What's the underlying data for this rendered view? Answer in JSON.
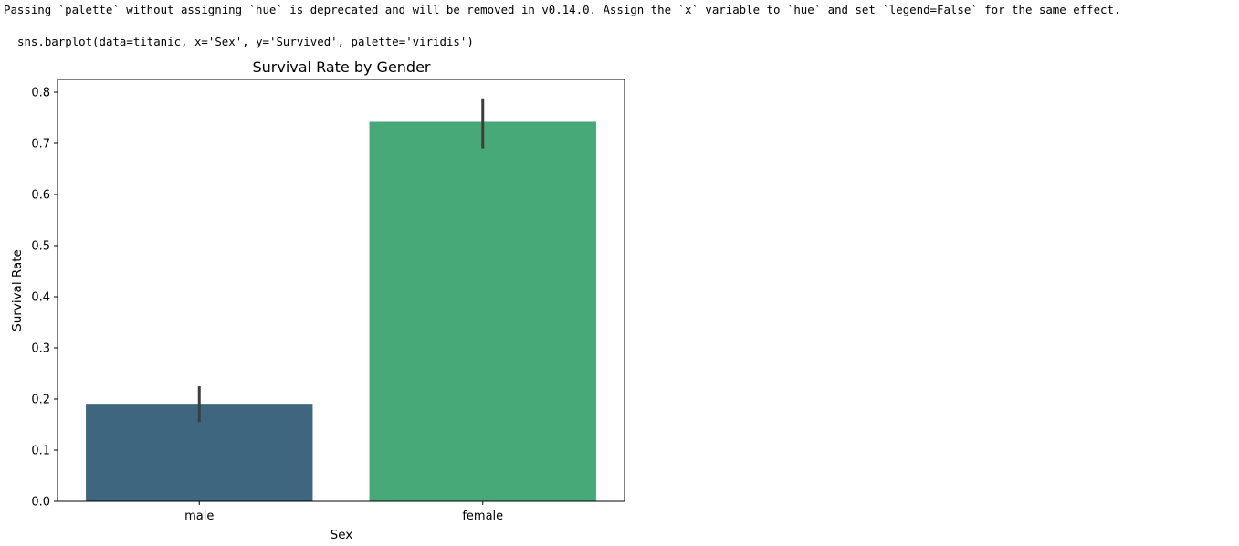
{
  "output": {
    "warning_text": "Passing `palette` without assigning `hue` is deprecated and will be removed in v0.14.0. Assign the `x` variable to `hue` and set `legend=False` for the same effect.",
    "code_text": "sns.barplot(data=titanic, x='Sex', y='Survived', palette='viridis')"
  },
  "chart_data": {
    "type": "bar",
    "title": "Survival Rate by Gender",
    "xlabel": "Sex",
    "ylabel": "Survival Rate",
    "categories": [
      "male",
      "female"
    ],
    "values": [
      0.189,
      0.742
    ],
    "error_low": [
      0.155,
      0.69
    ],
    "error_high": [
      0.225,
      0.788
    ],
    "colors": [
      "#3e667f",
      "#47a878"
    ],
    "ylim": [
      0,
      0.825
    ],
    "yticks": [
      0.0,
      0.1,
      0.2,
      0.3,
      0.4,
      0.5,
      0.6,
      0.7,
      0.8
    ],
    "ytick_labels": [
      "0.0",
      "0.1",
      "0.2",
      "0.3",
      "0.4",
      "0.5",
      "0.6",
      "0.7",
      "0.8"
    ],
    "grid": false,
    "error_color": "#3d3d3d"
  }
}
